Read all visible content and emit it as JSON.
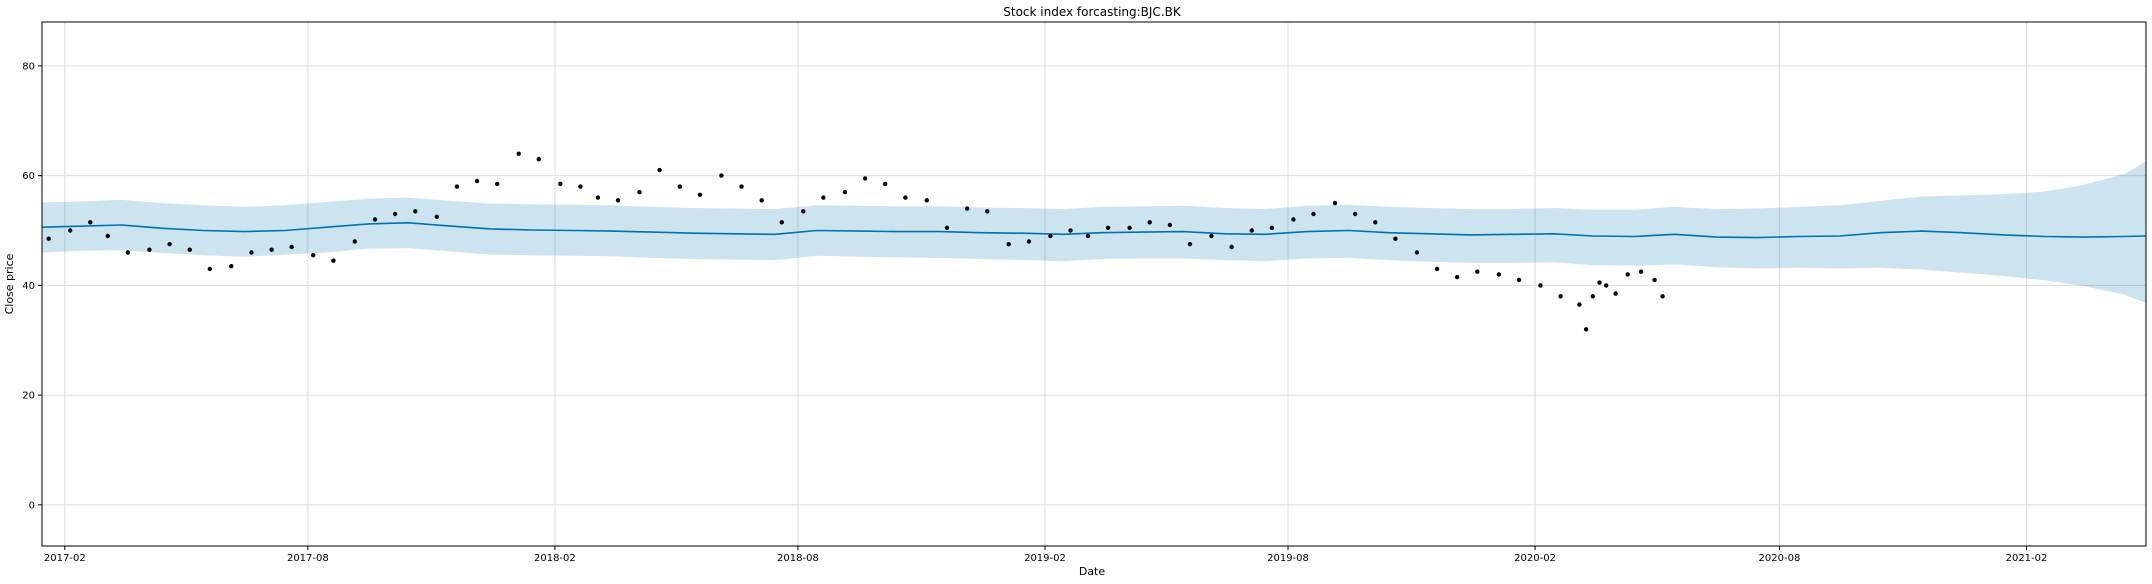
{
  "chart_data": {
    "type": "line",
    "title": "Stock index forcasting:BJC.BK",
    "xlabel": "Date",
    "ylabel": "Close price",
    "ylim": [
      -7.5,
      88
    ],
    "xlim": [
      "2017-01-15",
      "2021-05-01"
    ],
    "grid": true,
    "x_ticks": [
      "2017-02",
      "2017-08",
      "2018-02",
      "2018-08",
      "2019-02",
      "2019-08",
      "2020-02",
      "2020-08",
      "2021-02"
    ],
    "y_ticks": [
      0,
      20,
      40,
      60,
      80
    ],
    "colors": {
      "forecast_line": "#0072B2",
      "uncertainty_band": "#0072B2",
      "band_opacity": 0.2,
      "actual_points": "#000000",
      "grid": "#dddddd"
    },
    "series": [
      {
        "kind": "forecast",
        "x": [
          "2017-01-15",
          "2017-02-15",
          "2017-03-15",
          "2017-04-15",
          "2017-05-15",
          "2017-06-15",
          "2017-07-15",
          "2017-08-15",
          "2017-09-15",
          "2017-10-15",
          "2017-11-15",
          "2017-12-15",
          "2018-01-15",
          "2018-02-15",
          "2018-03-15",
          "2018-04-15",
          "2018-05-15",
          "2018-06-15",
          "2018-07-15",
          "2018-08-15",
          "2018-09-15",
          "2018-10-15",
          "2018-11-15",
          "2018-12-15",
          "2019-01-15",
          "2019-02-15",
          "2019-03-15",
          "2019-04-15",
          "2019-05-15",
          "2019-06-15",
          "2019-07-15",
          "2019-08-15",
          "2019-09-15",
          "2019-10-15",
          "2019-11-15",
          "2019-12-15",
          "2020-01-15",
          "2020-02-15",
          "2020-03-15",
          "2020-04-15",
          "2020-05-15",
          "2020-06-15",
          "2020-07-15",
          "2020-08-15",
          "2020-09-15",
          "2020-10-15",
          "2020-11-15",
          "2020-12-15",
          "2021-01-15",
          "2021-02-15",
          "2021-03-15",
          "2021-04-15",
          "2021-05-01"
        ],
        "yhat": [
          50.6,
          50.8,
          51.0,
          50.4,
          50.0,
          49.8,
          50.0,
          50.6,
          51.2,
          51.4,
          50.8,
          50.3,
          50.1,
          50.0,
          49.9,
          49.7,
          49.5,
          49.4,
          49.3,
          50.0,
          49.9,
          49.8,
          49.8,
          49.6,
          49.5,
          49.3,
          49.6,
          49.7,
          49.8,
          49.4,
          49.3,
          49.8,
          50.0,
          49.6,
          49.4,
          49.2,
          49.3,
          49.4,
          49.0,
          48.9,
          49.3,
          48.8,
          48.7,
          48.9,
          49.0,
          49.6,
          49.9,
          49.6,
          49.2,
          48.9,
          48.8,
          48.9,
          49.0
        ],
        "yhat_lower": [
          46.0,
          46.3,
          46.4,
          45.9,
          45.5,
          45.2,
          45.6,
          46.0,
          46.7,
          46.8,
          46.2,
          45.6,
          45.5,
          45.4,
          45.3,
          45.0,
          44.8,
          44.7,
          44.6,
          45.4,
          45.2,
          45.1,
          45.0,
          44.8,
          44.6,
          44.4,
          44.8,
          44.9,
          44.9,
          44.6,
          44.4,
          44.9,
          45.0,
          44.6,
          44.3,
          44.1,
          44.1,
          44.2,
          43.7,
          43.6,
          43.8,
          43.3,
          43.1,
          43.2,
          43.1,
          43.2,
          42.9,
          42.3,
          41.7,
          40.9,
          39.9,
          38.3,
          36.8
        ],
        "yhat_upper": [
          55.1,
          55.3,
          55.6,
          55.0,
          54.6,
          54.3,
          54.6,
          55.2,
          55.8,
          56.0,
          55.4,
          54.9,
          54.8,
          54.7,
          54.6,
          54.3,
          54.1,
          54.0,
          53.9,
          54.6,
          54.5,
          54.4,
          54.4,
          54.2,
          54.1,
          53.9,
          54.3,
          54.4,
          54.5,
          54.1,
          53.9,
          54.5,
          54.7,
          54.3,
          54.1,
          53.9,
          53.9,
          54.1,
          53.8,
          53.8,
          54.3,
          53.9,
          54.0,
          54.3,
          54.6,
          55.4,
          56.2,
          56.4,
          56.6,
          57.1,
          58.3,
          60.3,
          62.6
        ]
      },
      {
        "kind": "actual",
        "x": [
          "2017-01-20",
          "2017-02-05",
          "2017-02-20",
          "2017-03-05",
          "2017-03-20",
          "2017-04-05",
          "2017-04-20",
          "2017-05-05",
          "2017-05-20",
          "2017-06-05",
          "2017-06-20",
          "2017-07-05",
          "2017-07-20",
          "2017-08-05",
          "2017-08-20",
          "2017-09-05",
          "2017-09-20",
          "2017-10-05",
          "2017-10-20",
          "2017-11-05",
          "2017-11-20",
          "2017-12-05",
          "2017-12-20",
          "2018-01-05",
          "2018-01-20",
          "2018-02-05",
          "2018-02-20",
          "2018-03-05",
          "2018-03-20",
          "2018-04-05",
          "2018-04-20",
          "2018-05-05",
          "2018-05-20",
          "2018-06-05",
          "2018-06-20",
          "2018-07-05",
          "2018-07-20",
          "2018-08-05",
          "2018-08-20",
          "2018-09-05",
          "2018-09-20",
          "2018-10-05",
          "2018-10-20",
          "2018-11-05",
          "2018-11-20",
          "2018-12-05",
          "2018-12-20",
          "2019-01-05",
          "2019-01-20",
          "2019-02-05",
          "2019-02-20",
          "2019-03-05",
          "2019-03-20",
          "2019-04-05",
          "2019-04-20",
          "2019-05-05",
          "2019-05-20",
          "2019-06-05",
          "2019-06-20",
          "2019-07-05",
          "2019-07-20",
          "2019-08-05",
          "2019-08-20",
          "2019-09-05",
          "2019-09-20",
          "2019-10-05",
          "2019-10-20",
          "2019-11-05",
          "2019-11-20",
          "2019-12-05",
          "2019-12-20",
          "2020-01-05",
          "2020-01-20",
          "2020-02-05",
          "2020-02-20",
          "2020-03-05",
          "2020-03-10",
          "2020-03-15",
          "2020-03-20",
          "2020-03-25",
          "2020-04-01",
          "2020-04-10",
          "2020-04-20",
          "2020-04-30",
          "2020-05-06"
        ],
        "y": [
          48.5,
          50.0,
          51.5,
          49.0,
          46.0,
          46.5,
          47.5,
          46.5,
          43.0,
          43.5,
          46.0,
          46.5,
          47.0,
          45.5,
          44.5,
          48.0,
          52.0,
          53.0,
          53.5,
          52.5,
          58.0,
          59.0,
          58.5,
          64.0,
          63.0,
          58.5,
          58.0,
          56.0,
          55.5,
          57.0,
          61.0,
          58.0,
          56.5,
          60.0,
          58.0,
          55.5,
          51.5,
          53.5,
          56.0,
          57.0,
          59.5,
          58.5,
          56.0,
          55.5,
          50.5,
          54.0,
          53.5,
          47.5,
          48.0,
          49.0,
          50.0,
          49.0,
          50.5,
          50.5,
          51.5,
          51.0,
          47.5,
          49.0,
          47.0,
          50.0,
          50.5,
          52.0,
          53.0,
          55.0,
          53.0,
          51.5,
          48.5,
          46.0,
          43.0,
          41.5,
          42.5,
          42.0,
          41.0,
          40.0,
          38.0,
          36.5,
          32.0,
          38.0,
          40.5,
          40.0,
          38.5,
          42.0,
          42.5,
          41.0,
          38.0
        ]
      }
    ]
  }
}
